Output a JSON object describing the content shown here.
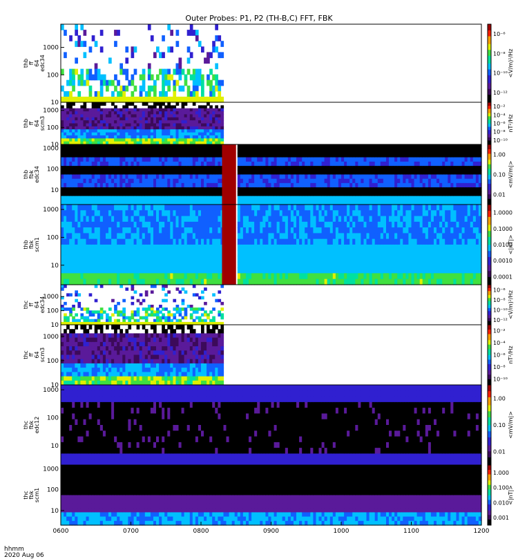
{
  "chart_data": {
    "type": "heatmap",
    "title": "Outer Probes: P1, P2 (TH-B,C) FFT, FBK",
    "time_axis": {
      "label": "hhmm",
      "date": "2020 Aug 06",
      "tick_labels": [
        "0600",
        "0700",
        "0800",
        "0900",
        "1000",
        "1100",
        "1200"
      ],
      "range_hours": [
        6,
        12
      ]
    },
    "panels": [
      {
        "ylabel": [
          "thb",
          "ff",
          "64",
          "edc34"
        ],
        "y_ticks": [
          "10",
          "100",
          "1000"
        ],
        "y_log_range": [
          10,
          7000
        ],
        "cbar_label": "<V/m)²/Hz",
        "cbar_ticks": [
          "10⁻¹²",
          "10⁻¹⁰",
          "10⁻⁸",
          "10⁻⁶"
        ],
        "cbar_log_range": [
          -13,
          -6
        ],
        "data_end_hour": 8.3,
        "style": "sparse_spikes"
      },
      {
        "ylabel": [
          "thb",
          "ff",
          "64",
          "scm3"
        ],
        "y_ticks": [
          "10",
          "100",
          "1000"
        ],
        "y_log_range": [
          10,
          3000
        ],
        "cbar_label": "nT²/Hz",
        "cbar_ticks": [
          "10⁻¹⁰",
          "10⁻⁸",
          "10⁻⁶",
          "10⁻⁴",
          "10⁻²"
        ],
        "cbar_log_range": [
          -11,
          -1
        ],
        "data_end_hour": 8.3,
        "style": "banded_noise"
      },
      {
        "ylabel": [
          "thb",
          "fbk",
          "edc34"
        ],
        "y_ticks": [
          "10",
          "100",
          "1000"
        ],
        "y_log_range": [
          2,
          1500
        ],
        "cbar_label": "<mV/m|>",
        "cbar_ticks": [
          "0.01",
          "0.10",
          "1.00"
        ],
        "cbar_log_range": [
          -2.3,
          0.2
        ],
        "data_end_hour": 12,
        "gap_hours": [
          8.3,
          8.5
        ],
        "style": "fbk_bands"
      },
      {
        "ylabel": [
          "thb",
          "fbk",
          "scm1"
        ],
        "y_ticks": [
          "10",
          "100",
          "1000"
        ],
        "y_log_range": [
          2,
          1500
        ],
        "cbar_label": "<|nT|>",
        "cbar_ticks": [
          "0.0001",
          "0.0010",
          "0.0100",
          "0.1000",
          "1.0000"
        ],
        "cbar_log_range": [
          -4.3,
          0.3
        ],
        "data_end_hour": 12,
        "gap_hours": [
          8.3,
          8.5
        ],
        "style": "fbk_scm"
      },
      {
        "ylabel": [
          "thc",
          "ff",
          "64",
          "edc34"
        ],
        "y_ticks": [
          "10",
          "100",
          "1000"
        ],
        "y_log_range": [
          10,
          7000
        ],
        "cbar_label": "<V/m)²/Hz",
        "cbar_ticks": [
          "10⁻¹²",
          "10⁻¹⁰",
          "10⁻⁸",
          "10⁻⁶"
        ],
        "cbar_log_range": [
          -13,
          -6
        ],
        "data_end_hour": 8.3,
        "style": "sparse_spikes"
      },
      {
        "ylabel": [
          "thc",
          "ff",
          "64",
          "scm3"
        ],
        "y_ticks": [
          "10",
          "100",
          "1000"
        ],
        "y_log_range": [
          10,
          3000
        ],
        "cbar_label": "nT²/Hz",
        "cbar_ticks": [
          "10⁻¹⁰",
          "10⁻⁸",
          "10⁻⁶",
          "10⁻⁴",
          "10⁻²"
        ],
        "cbar_log_range": [
          -11,
          -1
        ],
        "data_end_hour": 8.3,
        "style": "banded_noise"
      },
      {
        "ylabel": [
          "thc",
          "fbk",
          "edc12"
        ],
        "y_ticks": [
          "10",
          "100",
          "1000"
        ],
        "y_log_range": [
          2,
          1500
        ],
        "cbar_label": "<mV/m|>",
        "cbar_ticks": [
          "0.01",
          "0.10",
          "1.00"
        ],
        "cbar_log_range": [
          -2.3,
          0.2
        ],
        "data_end_hour": 12,
        "style": "dark_fbk"
      },
      {
        "ylabel": [
          "thc",
          "fbk",
          "scm1"
        ],
        "y_ticks": [
          "10",
          "100",
          "1000"
        ],
        "y_log_range": [
          2,
          1500
        ],
        "cbar_label": "<|nT|>",
        "cbar_ticks": [
          "0.001",
          "0.010",
          "0.100",
          "1.000"
        ],
        "cbar_log_range": [
          -3.2,
          0.2
        ],
        "data_end_hour": 12,
        "style": "dark_scm"
      }
    ],
    "colormap": [
      "#000000",
      "#3c0a5a",
      "#5a1a9a",
      "#3020d0",
      "#1060ff",
      "#00c0ff",
      "#00e0a0",
      "#40e040",
      "#e0f000",
      "#ffa000",
      "#ff2000",
      "#a00000"
    ]
  }
}
